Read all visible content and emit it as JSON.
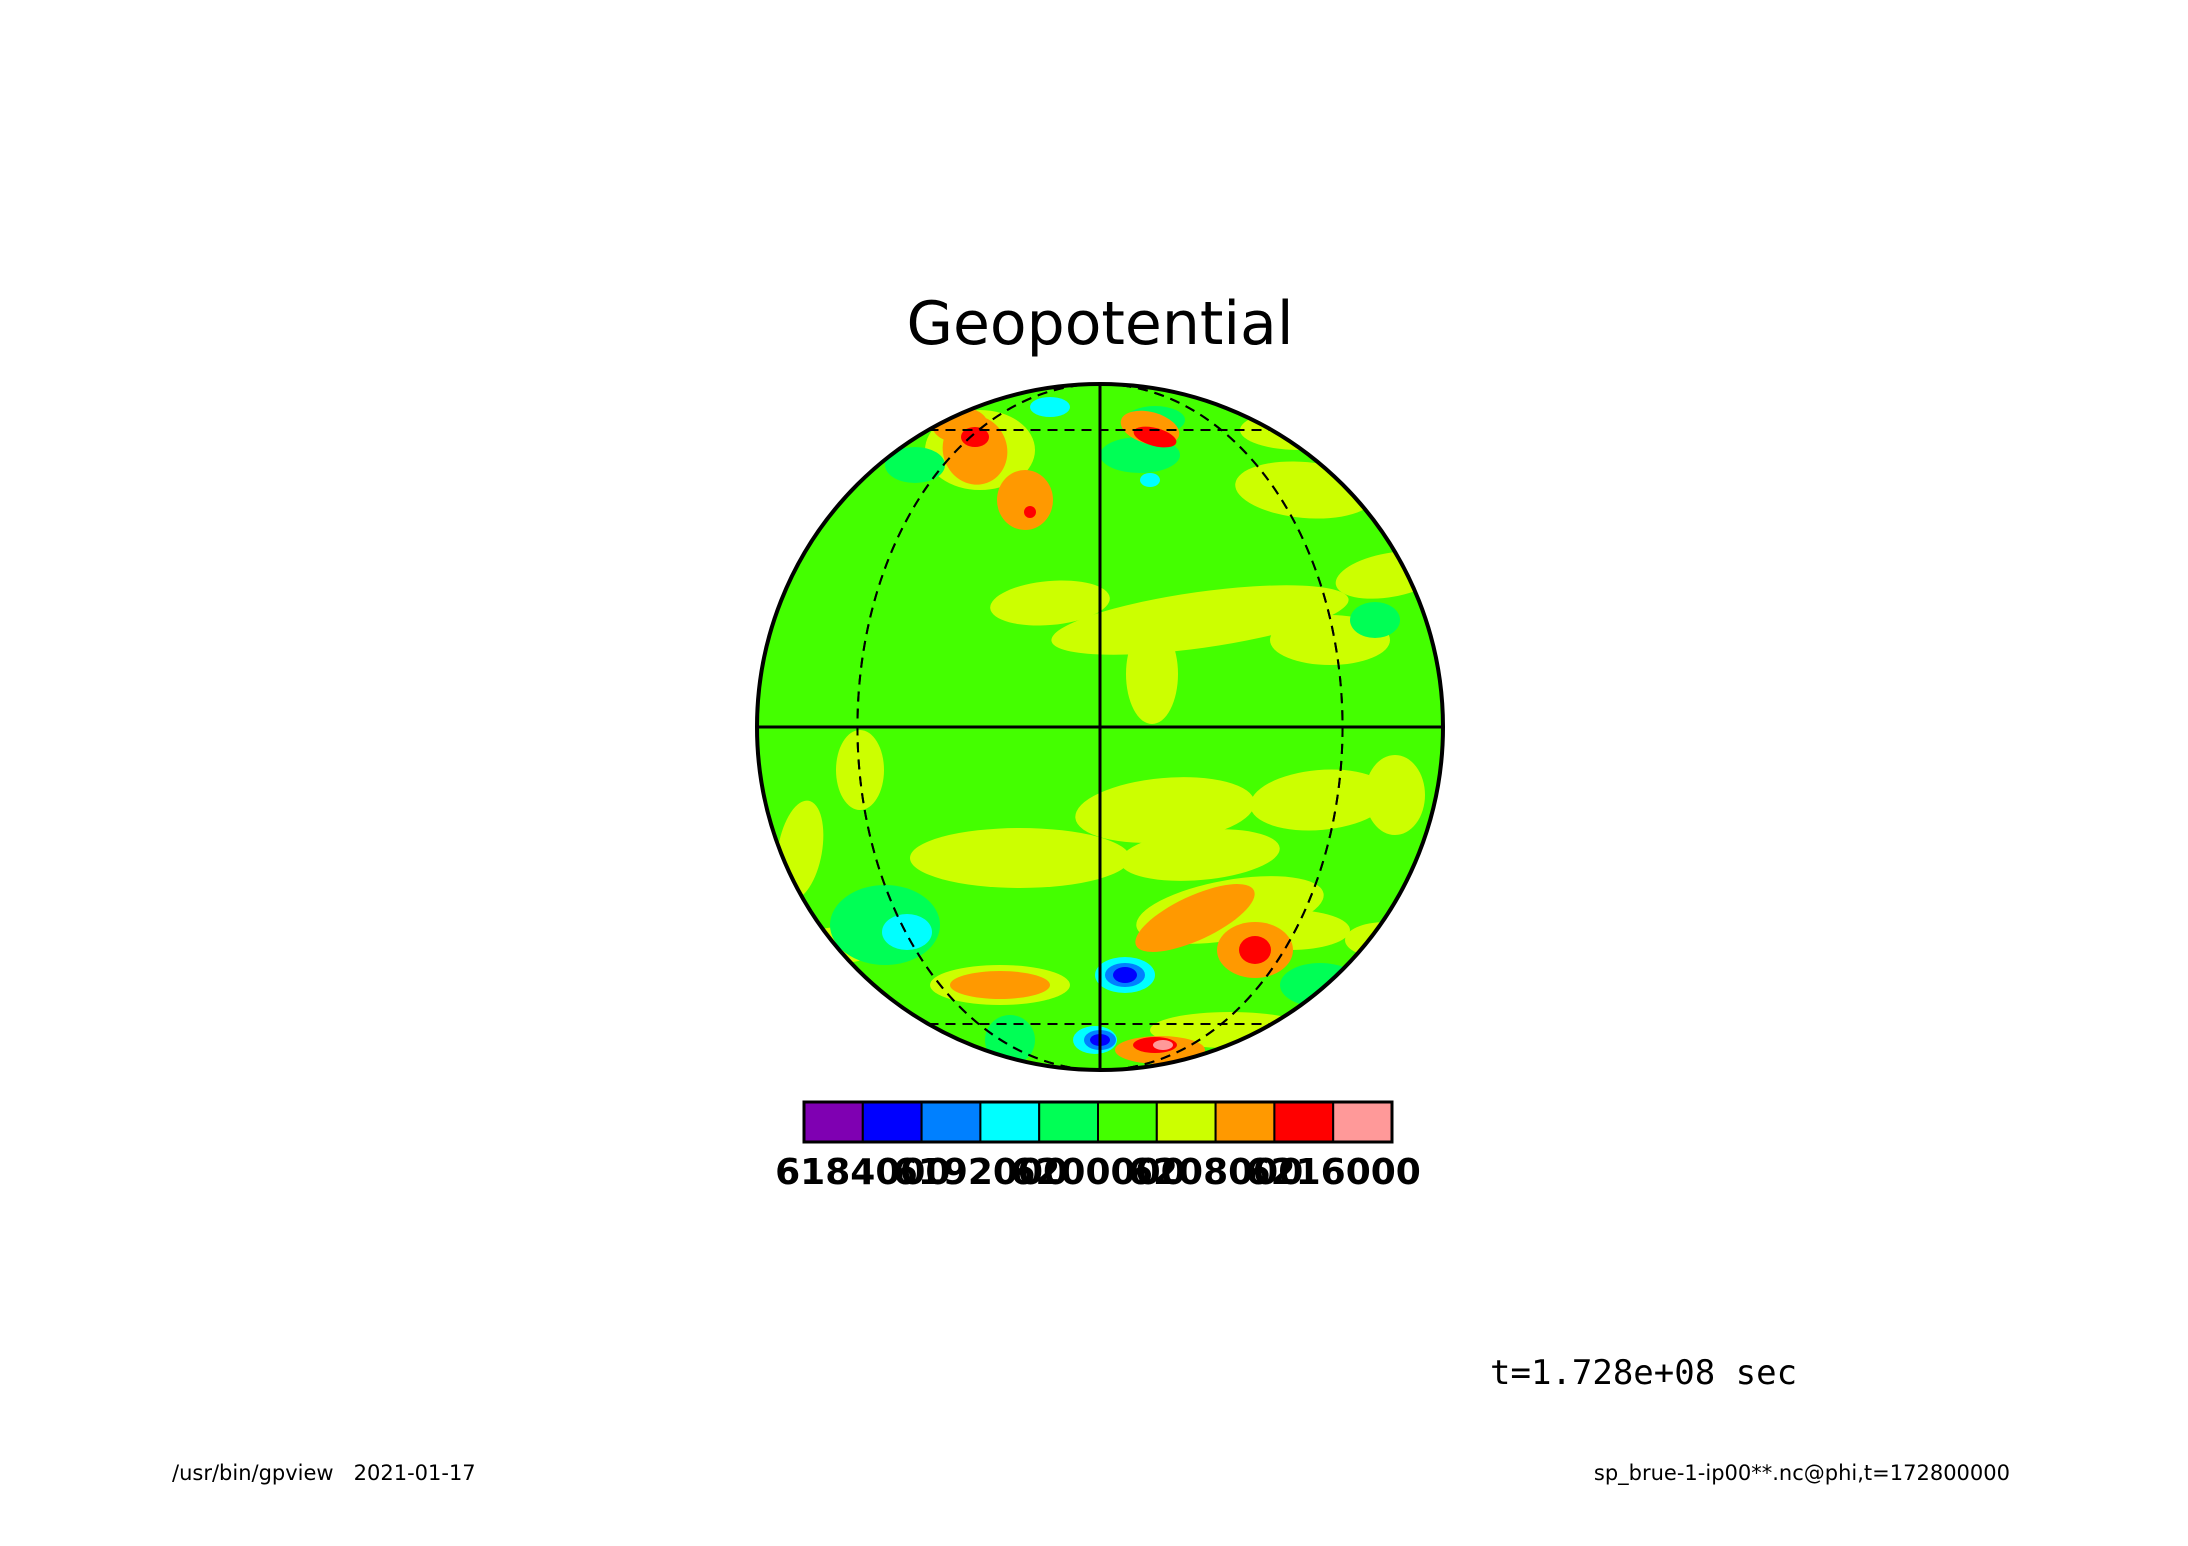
{
  "chart_data": {
    "type": "heatmap",
    "title": "Geopotential",
    "projection": "orthographic",
    "grid": true,
    "graticule": {
      "latitudes": [
        -60,
        0,
        60
      ],
      "longitudes": [
        -90,
        -45,
        0,
        45,
        90
      ]
    },
    "colorbar": {
      "placement": "bottom",
      "levels": [
        {
          "color": "#7f00b2"
        },
        {
          "color": "#0000ff"
        },
        {
          "color": "#0080ff"
        },
        {
          "color": "#00ffff"
        },
        {
          "color": "#00ff55"
        },
        {
          "color": "#44ff00"
        },
        {
          "color": "#ccff00"
        },
        {
          "color": "#ff9900"
        },
        {
          "color": "#ff0000"
        },
        {
          "color": "#ff9999"
        }
      ],
      "tick_labels": [
        "6184000",
        "6192000",
        "6200000",
        "6208000",
        "6216000"
      ]
    }
  },
  "time_label": "t=1.728e+08 sec",
  "footer": {
    "left": "/usr/bin/gpview   2021-01-17",
    "right": "sp_brue-1-ip00**.nc@phi,t=172800000"
  }
}
